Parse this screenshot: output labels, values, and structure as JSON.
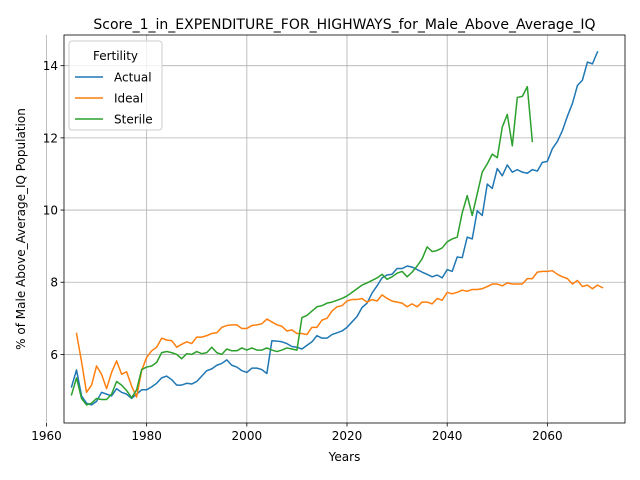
{
  "chart_data": {
    "type": "line",
    "title": "Score_1_in_EXPENDITURE_FOR_HIGHWAYS_for_Male_Above_Average_IQ",
    "xlabel": "Years",
    "ylabel": "% of Male Above_Average_IQ Population",
    "xlim": [
      1963.5,
      2075.5
    ],
    "ylim": [
      4.1,
      14.85
    ],
    "xticks": [
      1960,
      1980,
      2000,
      2020,
      2040,
      2060
    ],
    "yticks": [
      6,
      8,
      10,
      12,
      14
    ],
    "grid": true,
    "legend": {
      "title": "Fertility",
      "placement": "top-left"
    },
    "series": [
      {
        "name": "Actual",
        "color": "#1f77b4",
        "points": [
          [
            1965,
            5.1
          ],
          [
            1966,
            5.57
          ],
          [
            1967,
            4.85
          ],
          [
            1968,
            4.65
          ],
          [
            1969,
            4.6
          ],
          [
            1970,
            4.7
          ],
          [
            1971,
            4.95
          ],
          [
            1972,
            4.9
          ],
          [
            1973,
            4.85
          ],
          [
            1974,
            5.05
          ],
          [
            1975,
            4.95
          ],
          [
            1976,
            4.9
          ],
          [
            1977,
            4.78
          ],
          [
            1978,
            4.9
          ],
          [
            1979,
            5.02
          ],
          [
            1980,
            5.02
          ],
          [
            1981,
            5.1
          ],
          [
            1982,
            5.2
          ],
          [
            1983,
            5.35
          ],
          [
            1984,
            5.4
          ],
          [
            1985,
            5.3
          ],
          [
            1986,
            5.15
          ],
          [
            1987,
            5.15
          ],
          [
            1988,
            5.2
          ],
          [
            1989,
            5.18
          ],
          [
            1990,
            5.25
          ],
          [
            1991,
            5.4
          ],
          [
            1992,
            5.55
          ],
          [
            1993,
            5.6
          ],
          [
            1994,
            5.7
          ],
          [
            1995,
            5.75
          ],
          [
            1996,
            5.85
          ],
          [
            1997,
            5.7
          ],
          [
            1998,
            5.65
          ],
          [
            1999,
            5.55
          ],
          [
            2000,
            5.5
          ],
          [
            2001,
            5.62
          ],
          [
            2002,
            5.62
          ],
          [
            2003,
            5.58
          ],
          [
            2004,
            5.47
          ],
          [
            2005,
            6.38
          ],
          [
            2006,
            6.37
          ],
          [
            2007,
            6.35
          ],
          [
            2008,
            6.3
          ],
          [
            2009,
            6.22
          ],
          [
            2010,
            6.2
          ],
          [
            2011,
            6.15
          ],
          [
            2012,
            6.25
          ],
          [
            2013,
            6.35
          ],
          [
            2014,
            6.52
          ],
          [
            2015,
            6.45
          ],
          [
            2016,
            6.45
          ],
          [
            2017,
            6.55
          ],
          [
            2018,
            6.6
          ],
          [
            2019,
            6.65
          ],
          [
            2020,
            6.75
          ],
          [
            2021,
            6.9
          ],
          [
            2022,
            7.05
          ],
          [
            2023,
            7.3
          ],
          [
            2024,
            7.42
          ],
          [
            2025,
            7.7
          ],
          [
            2026,
            7.9
          ],
          [
            2027,
            8.12
          ],
          [
            2028,
            8.2
          ],
          [
            2029,
            8.22
          ],
          [
            2030,
            8.38
          ],
          [
            2031,
            8.38
          ],
          [
            2032,
            8.45
          ],
          [
            2033,
            8.42
          ],
          [
            2034,
            8.35
          ],
          [
            2035,
            8.28
          ],
          [
            2036,
            8.22
          ],
          [
            2037,
            8.15
          ],
          [
            2038,
            8.2
          ],
          [
            2039,
            8.12
          ],
          [
            2040,
            8.35
          ],
          [
            2041,
            8.3
          ],
          [
            2042,
            8.7
          ],
          [
            2043,
            8.68
          ],
          [
            2044,
            9.25
          ],
          [
            2045,
            9.2
          ],
          [
            2046,
            9.98
          ],
          [
            2047,
            9.85
          ],
          [
            2048,
            10.72
          ],
          [
            2049,
            10.6
          ],
          [
            2050,
            11.15
          ],
          [
            2051,
            10.95
          ],
          [
            2052,
            11.25
          ],
          [
            2053,
            11.05
          ],
          [
            2054,
            11.12
          ],
          [
            2055,
            11.05
          ],
          [
            2056,
            11.02
          ],
          [
            2057,
            11.12
          ],
          [
            2058,
            11.08
          ],
          [
            2059,
            11.32
          ],
          [
            2060,
            11.35
          ],
          [
            2061,
            11.7
          ],
          [
            2062,
            11.9
          ],
          [
            2063,
            12.2
          ],
          [
            2064,
            12.6
          ],
          [
            2065,
            12.95
          ],
          [
            2066,
            13.45
          ],
          [
            2067,
            13.6
          ],
          [
            2068,
            14.1
          ],
          [
            2069,
            14.05
          ],
          [
            2070,
            14.38
          ]
        ]
      },
      {
        "name": "Ideal",
        "color": "#ff7f0e",
        "points": [
          [
            1966,
            6.58
          ],
          [
            1967,
            5.8
          ],
          [
            1968,
            4.95
          ],
          [
            1969,
            5.15
          ],
          [
            1970,
            5.68
          ],
          [
            1971,
            5.45
          ],
          [
            1972,
            5.05
          ],
          [
            1973,
            5.5
          ],
          [
            1974,
            5.82
          ],
          [
            1975,
            5.45
          ],
          [
            1976,
            5.52
          ],
          [
            1977,
            5.12
          ],
          [
            1978,
            4.82
          ],
          [
            1979,
            5.55
          ],
          [
            1980,
            5.92
          ],
          [
            1981,
            6.1
          ],
          [
            1982,
            6.2
          ],
          [
            1983,
            6.45
          ],
          [
            1984,
            6.4
          ],
          [
            1985,
            6.38
          ],
          [
            1986,
            6.2
          ],
          [
            1987,
            6.28
          ],
          [
            1988,
            6.35
          ],
          [
            1989,
            6.3
          ],
          [
            1990,
            6.48
          ],
          [
            1991,
            6.48
          ],
          [
            1992,
            6.52
          ],
          [
            1993,
            6.58
          ],
          [
            1994,
            6.6
          ],
          [
            1995,
            6.75
          ],
          [
            1996,
            6.8
          ],
          [
            1997,
            6.82
          ],
          [
            1998,
            6.82
          ],
          [
            1999,
            6.72
          ],
          [
            2000,
            6.72
          ],
          [
            2001,
            6.8
          ],
          [
            2002,
            6.82
          ],
          [
            2003,
            6.85
          ],
          [
            2004,
            6.98
          ],
          [
            2005,
            6.9
          ],
          [
            2006,
            6.82
          ],
          [
            2007,
            6.78
          ],
          [
            2008,
            6.65
          ],
          [
            2009,
            6.68
          ],
          [
            2010,
            6.58
          ],
          [
            2011,
            6.58
          ],
          [
            2012,
            6.55
          ],
          [
            2013,
            6.75
          ],
          [
            2014,
            6.75
          ],
          [
            2015,
            6.95
          ],
          [
            2016,
            7.0
          ],
          [
            2017,
            7.2
          ],
          [
            2018,
            7.32
          ],
          [
            2019,
            7.35
          ],
          [
            2020,
            7.48
          ],
          [
            2021,
            7.52
          ],
          [
            2022,
            7.52
          ],
          [
            2023,
            7.55
          ],
          [
            2024,
            7.45
          ],
          [
            2025,
            7.52
          ],
          [
            2026,
            7.48
          ],
          [
            2027,
            7.65
          ],
          [
            2028,
            7.55
          ],
          [
            2029,
            7.48
          ],
          [
            2030,
            7.45
          ],
          [
            2031,
            7.42
          ],
          [
            2032,
            7.32
          ],
          [
            2033,
            7.4
          ],
          [
            2034,
            7.32
          ],
          [
            2035,
            7.45
          ],
          [
            2036,
            7.45
          ],
          [
            2037,
            7.4
          ],
          [
            2038,
            7.55
          ],
          [
            2039,
            7.5
          ],
          [
            2040,
            7.72
          ],
          [
            2041,
            7.68
          ],
          [
            2042,
            7.72
          ],
          [
            2043,
            7.78
          ],
          [
            2044,
            7.75
          ],
          [
            2045,
            7.8
          ],
          [
            2046,
            7.8
          ],
          [
            2047,
            7.82
          ],
          [
            2048,
            7.88
          ],
          [
            2049,
            7.95
          ],
          [
            2050,
            7.95
          ],
          [
            2051,
            7.9
          ],
          [
            2052,
            7.98
          ],
          [
            2053,
            7.95
          ],
          [
            2054,
            7.95
          ],
          [
            2055,
            7.95
          ],
          [
            2056,
            8.1
          ],
          [
            2057,
            8.1
          ],
          [
            2058,
            8.28
          ],
          [
            2059,
            8.3
          ],
          [
            2060,
            8.3
          ],
          [
            2061,
            8.32
          ],
          [
            2062,
            8.22
          ],
          [
            2063,
            8.15
          ],
          [
            2064,
            8.1
          ],
          [
            2065,
            7.95
          ],
          [
            2066,
            8.05
          ],
          [
            2067,
            7.88
          ],
          [
            2068,
            7.92
          ],
          [
            2069,
            7.82
          ],
          [
            2070,
            7.92
          ],
          [
            2071,
            7.85
          ]
        ]
      },
      {
        "name": "Sterile",
        "color": "#2ca02c",
        "points": [
          [
            1965,
            4.88
          ],
          [
            1966,
            5.35
          ],
          [
            1967,
            4.78
          ],
          [
            1968,
            4.6
          ],
          [
            1969,
            4.65
          ],
          [
            1970,
            4.78
          ],
          [
            1971,
            4.75
          ],
          [
            1972,
            4.75
          ],
          [
            1973,
            4.9
          ],
          [
            1974,
            5.25
          ],
          [
            1975,
            5.15
          ],
          [
            1976,
            5.0
          ],
          [
            1977,
            4.8
          ],
          [
            1978,
            5.02
          ],
          [
            1979,
            5.58
          ],
          [
            1980,
            5.65
          ],
          [
            1981,
            5.68
          ],
          [
            1982,
            5.78
          ],
          [
            1983,
            6.05
          ],
          [
            1984,
            6.08
          ],
          [
            1985,
            6.05
          ],
          [
            1986,
            6.0
          ],
          [
            1987,
            5.88
          ],
          [
            1988,
            6.02
          ],
          [
            1989,
            6.0
          ],
          [
            1990,
            6.08
          ],
          [
            1991,
            6.02
          ],
          [
            1992,
            6.05
          ],
          [
            1993,
            6.2
          ],
          [
            1994,
            6.05
          ],
          [
            1995,
            6.0
          ],
          [
            1996,
            6.15
          ],
          [
            1997,
            6.1
          ],
          [
            1998,
            6.1
          ],
          [
            1999,
            6.18
          ],
          [
            2000,
            6.12
          ],
          [
            2001,
            6.18
          ],
          [
            2002,
            6.12
          ],
          [
            2003,
            6.12
          ],
          [
            2004,
            6.18
          ],
          [
            2005,
            6.12
          ],
          [
            2006,
            6.08
          ],
          [
            2007,
            6.12
          ],
          [
            2008,
            6.18
          ],
          [
            2009,
            6.15
          ],
          [
            2010,
            6.12
          ],
          [
            2011,
            7.02
          ],
          [
            2012,
            7.08
          ],
          [
            2013,
            7.2
          ],
          [
            2014,
            7.32
          ],
          [
            2015,
            7.35
          ],
          [
            2016,
            7.42
          ],
          [
            2017,
            7.45
          ],
          [
            2018,
            7.5
          ],
          [
            2019,
            7.55
          ],
          [
            2020,
            7.62
          ],
          [
            2021,
            7.72
          ],
          [
            2022,
            7.82
          ],
          [
            2023,
            7.92
          ],
          [
            2024,
            7.98
          ],
          [
            2025,
            8.05
          ],
          [
            2026,
            8.12
          ],
          [
            2027,
            8.22
          ],
          [
            2028,
            8.08
          ],
          [
            2029,
            8.15
          ],
          [
            2030,
            8.25
          ],
          [
            2031,
            8.3
          ],
          [
            2032,
            8.15
          ],
          [
            2033,
            8.28
          ],
          [
            2034,
            8.45
          ],
          [
            2035,
            8.65
          ],
          [
            2036,
            8.98
          ],
          [
            2037,
            8.85
          ],
          [
            2038,
            8.88
          ],
          [
            2039,
            8.95
          ],
          [
            2040,
            9.12
          ],
          [
            2041,
            9.2
          ],
          [
            2042,
            9.25
          ],
          [
            2043,
            9.92
          ],
          [
            2044,
            10.4
          ],
          [
            2045,
            9.85
          ],
          [
            2046,
            10.45
          ],
          [
            2047,
            11.05
          ],
          [
            2048,
            11.28
          ],
          [
            2049,
            11.55
          ],
          [
            2050,
            11.45
          ],
          [
            2051,
            12.3
          ],
          [
            2052,
            12.65
          ],
          [
            2053,
            11.78
          ],
          [
            2054,
            13.12
          ],
          [
            2055,
            13.15
          ],
          [
            2056,
            13.42
          ],
          [
            2057,
            11.9
          ]
        ]
      }
    ]
  }
}
